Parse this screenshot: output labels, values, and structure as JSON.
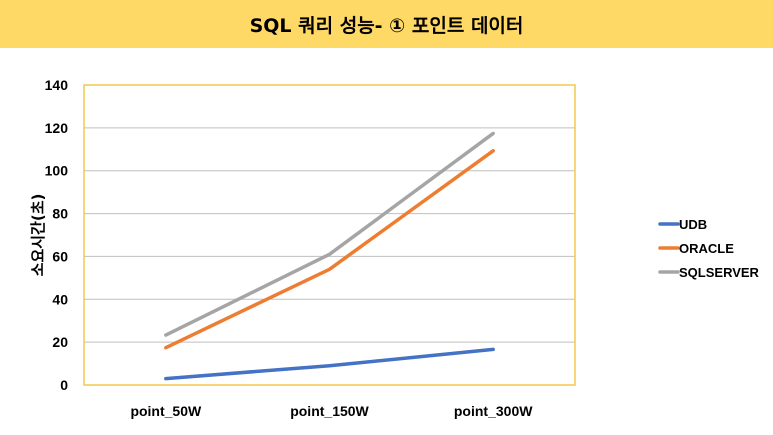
{
  "chart_data": {
    "type": "line",
    "title": "SQL 쿼리 성능- ① 포인트 데이터",
    "xlabel": "",
    "ylabel": "소요시간(초)",
    "categories": [
      "point_50W",
      "point_150W",
      "point_300W"
    ],
    "ylim": [
      0,
      140
    ],
    "yticks": [
      0,
      20,
      40,
      60,
      80,
      100,
      120,
      140
    ],
    "grid": true,
    "legend": "right",
    "series": [
      {
        "name": "UDB",
        "color": "#4472c4",
        "values": [
          3,
          9,
          16.6
        ]
      },
      {
        "name": "ORACLE",
        "color": "#ed7d31",
        "values": [
          17.4,
          54,
          109.3
        ]
      },
      {
        "name": "SQLSERVER",
        "color": "#a5a5a5",
        "values": [
          23.3,
          61,
          117.4
        ]
      }
    ],
    "colors": {
      "title_background": "#ffd966",
      "plot_border": "#f2c84b"
    }
  }
}
